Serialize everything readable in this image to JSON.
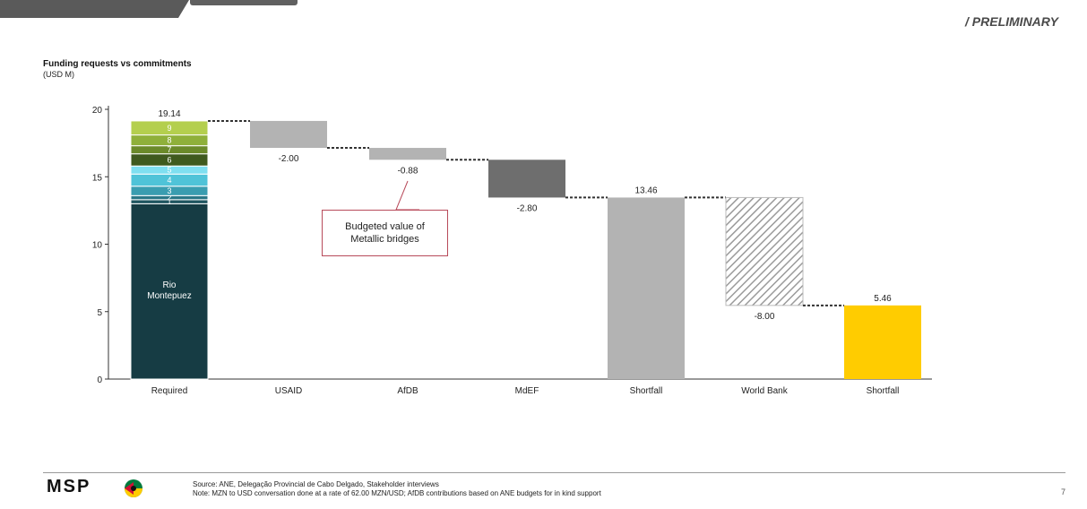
{
  "header": {
    "tag": "/ PRELIMINARY"
  },
  "chart_heading": {
    "title": "Funding requests vs commitments",
    "unit": "(USD M)"
  },
  "callout": {
    "line1": "Budgeted value of",
    "line2": "Metallic bridges"
  },
  "footer": {
    "logo": "MSP",
    "source": "Source: ANE, Delegação Provincial de Cabo Delgado, Stakeholder interviews",
    "note": "Note: MZN to USD conversation done at a rate of 62.00 MZN/USD; AfDB contributions based on ANE budgets for in kind support",
    "page": "7"
  },
  "colors": {
    "required_base": "#1a3f47",
    "usaid": "#b3b3b3",
    "afdb": "#b3b3b3",
    "mdef": "#6e6e6e",
    "shortfall": "#b3b3b3",
    "world_bank_hatch": "#9a9a9a",
    "final_shortfall": "#ffcc00",
    "segment_colors": [
      "#163c44",
      "#1f5560",
      "#2a7787",
      "#3a9db0",
      "#4fc3d8",
      "#7fdff0",
      "#3f5a1e",
      "#6b8a2a",
      "#8fb03a",
      "#b4cf4e"
    ]
  },
  "chart_data": {
    "type": "bar",
    "subtype": "waterfall",
    "title": "Funding requests vs commitments",
    "ylabel": "(USD M)",
    "ylim": [
      0,
      20
    ],
    "yticks": [
      0,
      5,
      10,
      15,
      20
    ],
    "categories": [
      "Required",
      "USAID",
      "AfDB",
      "MdEF",
      "Shortfall",
      "World Bank",
      "Shortfall"
    ],
    "steps": [
      {
        "category": "Required",
        "kind": "total",
        "value": 19.14,
        "label": "19.14"
      },
      {
        "category": "USAID",
        "kind": "delta",
        "value": -2.0,
        "label": "-2.00"
      },
      {
        "category": "AfDB",
        "kind": "delta",
        "value": -0.88,
        "label": "-0.88"
      },
      {
        "category": "MdEF",
        "kind": "delta",
        "value": -2.8,
        "label": "-2.80"
      },
      {
        "category": "Shortfall",
        "kind": "total",
        "value": 13.46,
        "label": "13.46"
      },
      {
        "category": "World Bank",
        "kind": "delta",
        "value": -8.0,
        "label": "-8.00",
        "pattern": "hatched"
      },
      {
        "category": "Shortfall",
        "kind": "total",
        "value": 5.46,
        "label": "5.46"
      }
    ],
    "required_breakdown": [
      {
        "label": "Rio Montepuez",
        "value": 13.0
      },
      {
        "label": "1",
        "value": 0.3
      },
      {
        "label": "2",
        "value": 0.3
      },
      {
        "label": "3",
        "value": 0.7
      },
      {
        "label": "4",
        "value": 0.9
      },
      {
        "label": "5",
        "value": 0.6
      },
      {
        "label": "6",
        "value": 0.9
      },
      {
        "label": "7",
        "value": 0.6
      },
      {
        "label": "8",
        "value": 0.8
      },
      {
        "label": "9",
        "value": 1.04
      }
    ]
  }
}
